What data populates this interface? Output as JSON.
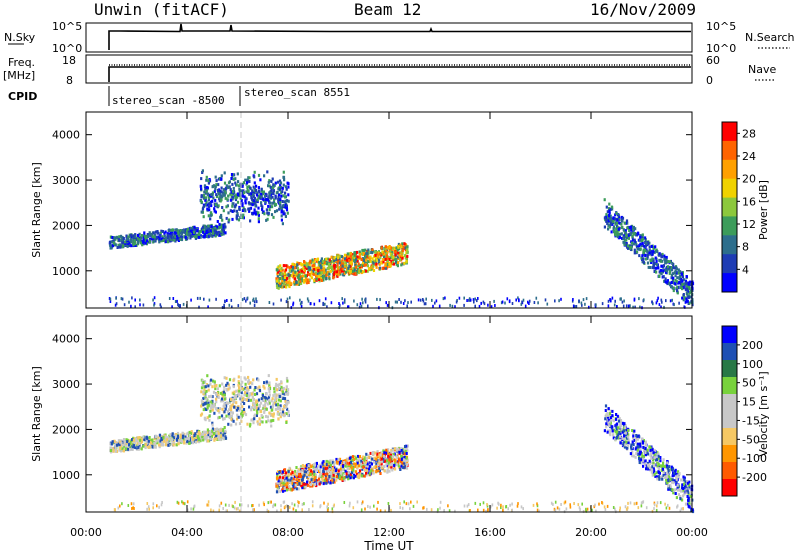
{
  "header": {
    "title": "Unwin (fitACF)",
    "beam": "Beam 12",
    "date": "16/Nov/2009"
  },
  "strips": {
    "nsky_label": "N.Sky",
    "nsky_ticks": [
      "10^5",
      "10^0"
    ],
    "nsearch_label": "N.Search",
    "nsearch_ticks": [
      "10^5",
      "10^0"
    ],
    "freq_label": "Freq.",
    "freq_unit": "[MHz]",
    "freq_ticks": [
      "18",
      "8"
    ],
    "nave_label": "Nave",
    "nave_ticks": [
      "60",
      "0"
    ],
    "cpid_label": "CPID",
    "cpid_segments": [
      "stereo_scan -8500",
      "stereo_scan 8551"
    ]
  },
  "colors": {
    "power_scale": [
      "#0000ff",
      "#1e3cb4",
      "#2d6e8c",
      "#3c9c5a",
      "#8cc83c",
      "#f0d200",
      "#ffa000",
      "#ff6400",
      "#ff0000"
    ],
    "velocity_scale": [
      "#ff0000",
      "#ff5a00",
      "#ff9600",
      "#f5c864",
      "#c8c8c8",
      "#c8c8c8",
      "#78d23c",
      "#287846",
      "#1e50b4",
      "#0000ff"
    ]
  },
  "chart_data": [
    {
      "type": "heatmap",
      "title": "",
      "xlabel": "",
      "ylabel": "Slant Range [km]",
      "xticks": [
        "00:00",
        "04:00",
        "08:00",
        "12:00",
        "16:00",
        "20:00",
        "00:00"
      ],
      "yticks": [
        "1000",
        "2000",
        "3000",
        "4000"
      ],
      "xlim_hours": [
        0,
        24
      ],
      "ylim_km": [
        180,
        4500
      ],
      "colorbar": {
        "label": "Power [dB]",
        "ticks": [
          "4",
          "8",
          "12",
          "16",
          "20",
          "24",
          "28"
        ],
        "range": [
          0,
          30
        ]
      },
      "scatter_regions": [
        {
          "t0": 0.9,
          "t1": 5.5,
          "r0": 1650,
          "r1": 1950,
          "note_value": 6
        },
        {
          "t0": 4.5,
          "t1": 8.0,
          "r0": 2300,
          "r1": 3000,
          "note_value": 5
        },
        {
          "t0": 7.5,
          "t1": 12.7,
          "r0": 700,
          "r1": 1600,
          "note_value": 16
        },
        {
          "t0": 20.5,
          "t1": 24.0,
          "r0": 600,
          "r1": 2600,
          "note_value": 8
        }
      ]
    },
    {
      "type": "heatmap",
      "title": "",
      "xlabel": "Time UT",
      "ylabel": "Slant Range [km]",
      "xticks": [
        "00:00",
        "04:00",
        "08:00",
        "12:00",
        "16:00",
        "20:00",
        "00:00"
      ],
      "yticks": [
        "1000",
        "2000",
        "3000",
        "4000"
      ],
      "xlim_hours": [
        0,
        24
      ],
      "ylim_km": [
        180,
        4500
      ],
      "colorbar": {
        "label": "Velocity [m s⁻¹]",
        "ticks": [
          "200",
          "100",
          "50",
          "15",
          "-15",
          "-50",
          "-100",
          "-200"
        ],
        "range": [
          -250,
          250
        ]
      },
      "scatter_regions": [
        {
          "t0": 0.9,
          "t1": 5.5,
          "r0": 1650,
          "r1": 1950,
          "note_value": 0
        },
        {
          "t0": 4.5,
          "t1": 8.0,
          "r0": 2300,
          "r1": 3000,
          "note_value": 0
        },
        {
          "t0": 7.5,
          "t1": 12.7,
          "r0": 700,
          "r1": 1600,
          "note_value": -40
        },
        {
          "t0": 20.5,
          "t1": 24.0,
          "r0": 600,
          "r1": 2600,
          "note_value": 120
        }
      ]
    }
  ]
}
